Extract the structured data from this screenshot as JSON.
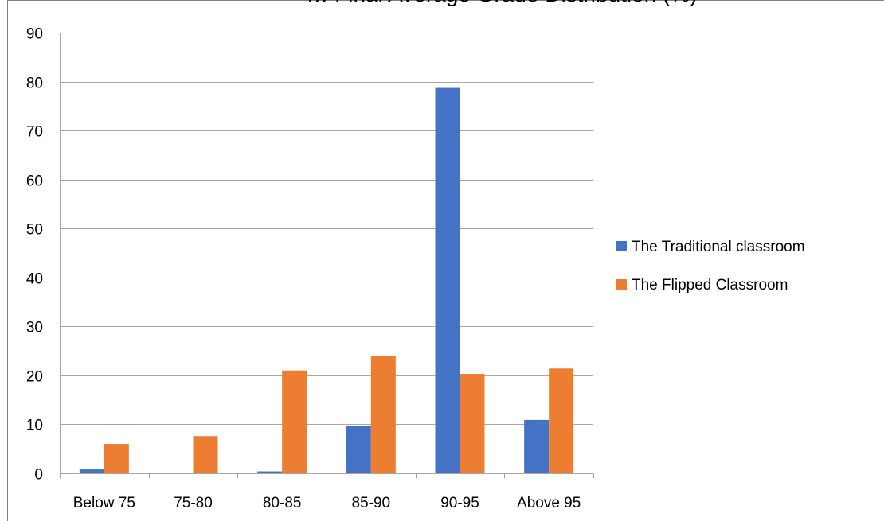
{
  "chart_data": {
    "type": "bar",
    "title": "… Final Average Grade Distribution (%)",
    "categories": [
      "Below 75",
      "75-80",
      "80-85",
      "85-90",
      "90-95",
      "Above 95"
    ],
    "series": [
      {
        "name": "The Traditional classroom",
        "values": [
          0.8,
          0,
          0.4,
          9.7,
          78.7,
          10.9
        ]
      },
      {
        "name": "The Flipped Classroom",
        "values": [
          6.0,
          7.6,
          21.0,
          23.9,
          20.3,
          21.4
        ]
      }
    ],
    "xlabel": "",
    "ylabel": "",
    "ylim": [
      0,
      90
    ],
    "yticks": [
      0,
      10,
      20,
      30,
      40,
      50,
      60,
      70,
      80,
      90
    ],
    "grid": "horizontal",
    "legend_position": "right",
    "colors": [
      "#4472C4",
      "#ED7D31"
    ],
    "gridline_color": "#A6A6A6",
    "frame_color": "#808080"
  }
}
